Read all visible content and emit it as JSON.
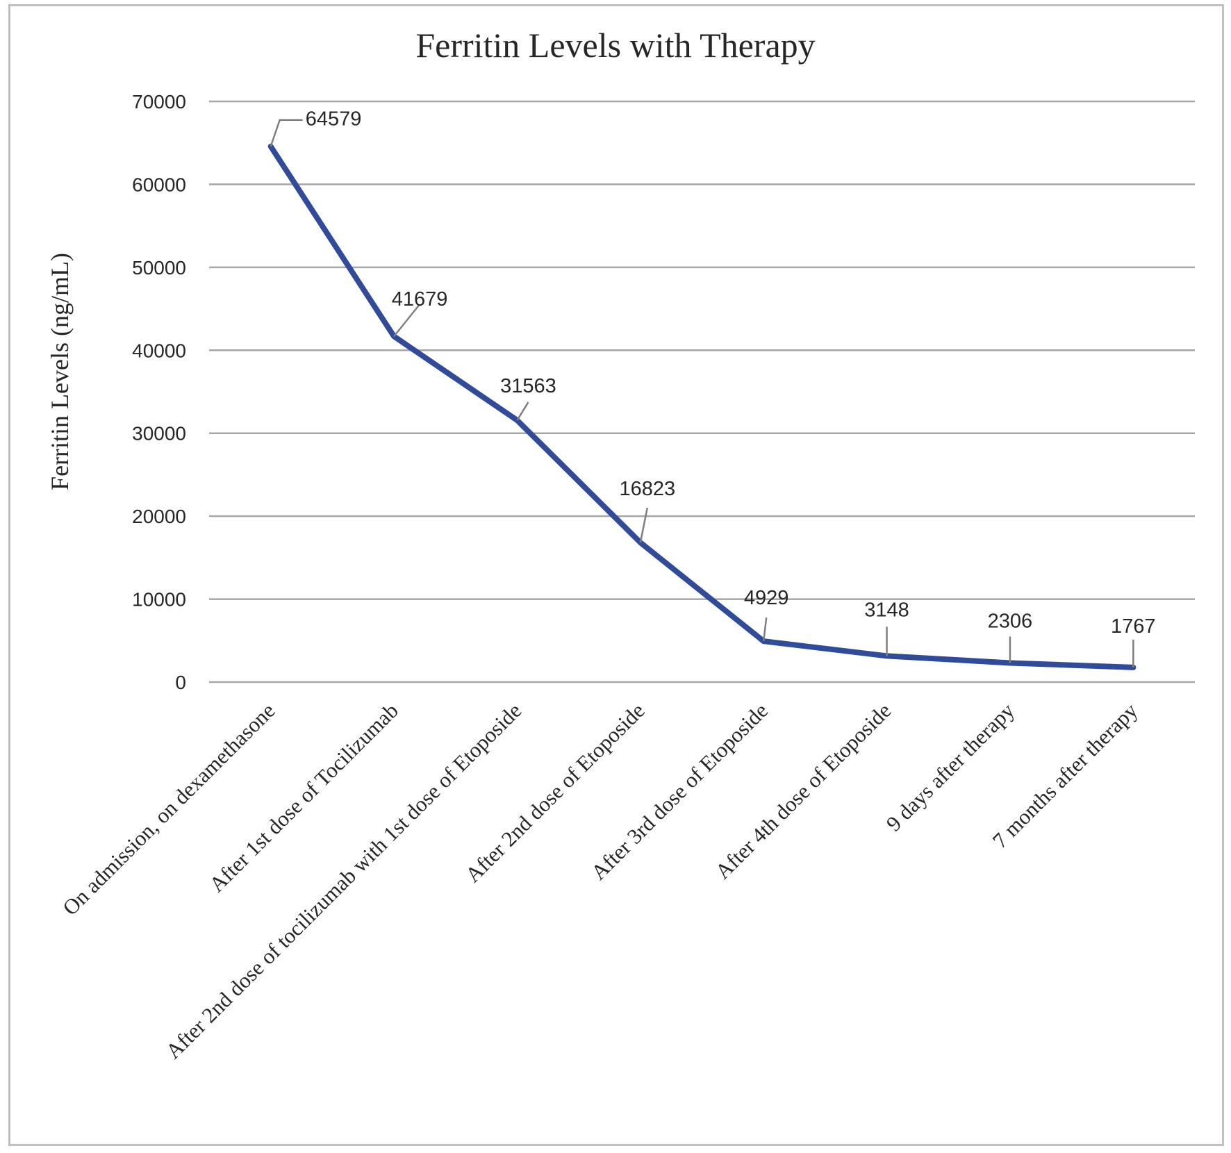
{
  "chart_data": {
    "type": "line",
    "title": "Ferritin Levels with Therapy",
    "xlabel": "",
    "ylabel": "Ferritin Levels (ng/mL)",
    "ylim": [
      0,
      70000
    ],
    "yticks": [
      0,
      10000,
      20000,
      30000,
      40000,
      50000,
      60000,
      70000
    ],
    "grid": true,
    "legend": "none",
    "categories": [
      "On admission, on dexamethasone",
      "After 1st dose of Tocilizumab",
      "After 2nd dose of tocilizumab  with 1st dose of Etoposide",
      "After 2nd dose of Etoposide",
      "After 3rd dose of Etoposide",
      "After 4th dose of Etoposide",
      "9 days after therapy",
      "7 months after therapy"
    ],
    "series": [
      {
        "values": [
          64579,
          41679,
          31563,
          16823,
          4929,
          3148,
          2306,
          1767
        ],
        "color": "#2f4b9a"
      }
    ],
    "data_labels": [
      "64579",
      "41679",
      "31563",
      "16823",
      "4929",
      "3148",
      "2306",
      "1767"
    ]
  }
}
